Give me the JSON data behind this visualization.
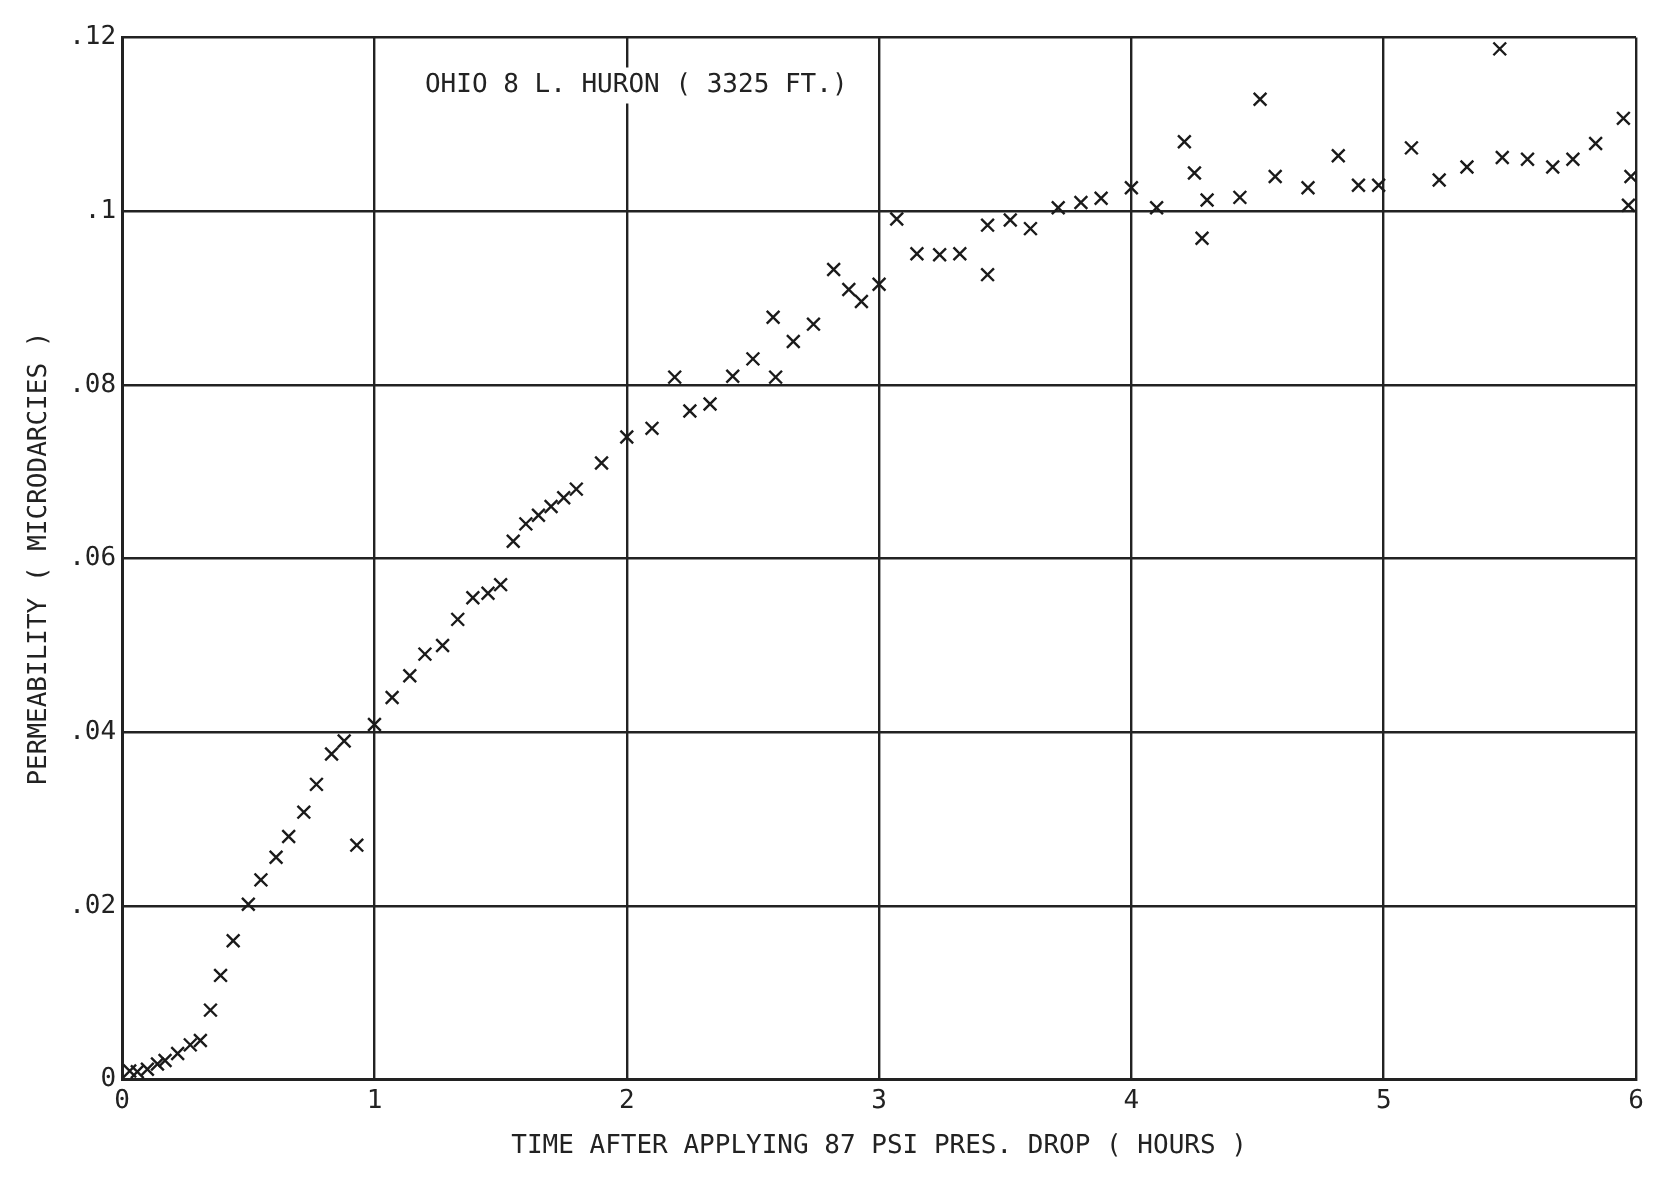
{
  "chart_data": {
    "type": "scatter",
    "xlabel": "TIME AFTER APPLYING 87 PSI PRES. DROP ( HOURS )",
    "ylabel": "PERMEABILITY ( MICRODARCIES )",
    "annotations": [
      "OHIO 8 L. HURON ( 3325 FT.)"
    ],
    "marker": "cross",
    "grid": true,
    "xlim": [
      0,
      6
    ],
    "xticks": [
      0,
      1,
      2,
      3,
      4,
      5,
      6
    ],
    "ylim": [
      0,
      0.12
    ],
    "yticks": [
      {
        "value": 0,
        "label": "0"
      },
      {
        "value": 0.02,
        "label": ".02"
      },
      {
        "value": 0.04,
        "label": ".04"
      },
      {
        "value": 0.06,
        "label": ".06"
      },
      {
        "value": 0.08,
        "label": ".08"
      },
      {
        "value": 0.1,
        "label": ".1"
      },
      {
        "value": 0.12,
        "label": ".12"
      }
    ],
    "series": [
      {
        "color": "#1a1a1a",
        "x": [
          0.03,
          0.06,
          0.1,
          0.14,
          0.17,
          0.22,
          0.27,
          0.31,
          0.35,
          0.39,
          0.44,
          0.5,
          0.55,
          0.61,
          0.66,
          0.72,
          0.77,
          0.83,
          0.88,
          0.93,
          1.0,
          1.07,
          1.14,
          1.2,
          1.27,
          1.33,
          1.39,
          1.45,
          1.5,
          1.55,
          1.6,
          1.65,
          1.7,
          1.75,
          1.8,
          1.9,
          2.0,
          2.1,
          2.19,
          2.25,
          2.33,
          2.42,
          2.5,
          2.58,
          2.59,
          2.66,
          2.74,
          2.82,
          2.88,
          2.93,
          3.0,
          3.07,
          3.15,
          3.24,
          3.32,
          3.43,
          3.43,
          3.52,
          3.6,
          3.71,
          3.8,
          3.88,
          4.0,
          4.1,
          4.21,
          4.25,
          4.28,
          4.3,
          4.43,
          4.51,
          4.57,
          4.7,
          4.82,
          4.9,
          4.98,
          5.11,
          5.22,
          5.33,
          5.46,
          5.47,
          5.57,
          5.67,
          5.75,
          5.84,
          5.95,
          5.97,
          5.98
        ],
        "values": [
          0.001,
          0.0009,
          0.0012,
          0.0018,
          0.0022,
          0.003,
          0.004,
          0.0045,
          0.008,
          0.012,
          0.016,
          0.0202,
          0.023,
          0.0256,
          0.028,
          0.0308,
          0.034,
          0.0375,
          0.039,
          0.027,
          0.0409,
          0.044,
          0.0465,
          0.049,
          0.05,
          0.053,
          0.0555,
          0.056,
          0.057,
          0.062,
          0.064,
          0.065,
          0.066,
          0.067,
          0.068,
          0.071,
          0.074,
          0.075,
          0.0809,
          0.077,
          0.0778,
          0.081,
          0.083,
          0.0878,
          0.0809,
          0.085,
          0.087,
          0.0933,
          0.091,
          0.0896,
          0.0916,
          0.0991,
          0.0951,
          0.095,
          0.0951,
          0.0984,
          0.0927,
          0.099,
          0.098,
          0.1004,
          0.101,
          0.1015,
          0.1027,
          0.1004,
          0.108,
          0.1044,
          0.0969,
          0.1013,
          0.1016,
          0.1129,
          0.104,
          0.1027,
          0.1064,
          0.103,
          0.103,
          0.1073,
          0.1036,
          0.1051,
          0.1187,
          0.1062,
          0.106,
          0.1051,
          0.106,
          0.1078,
          0.1107,
          0.1007,
          0.104
        ]
      }
    ]
  }
}
